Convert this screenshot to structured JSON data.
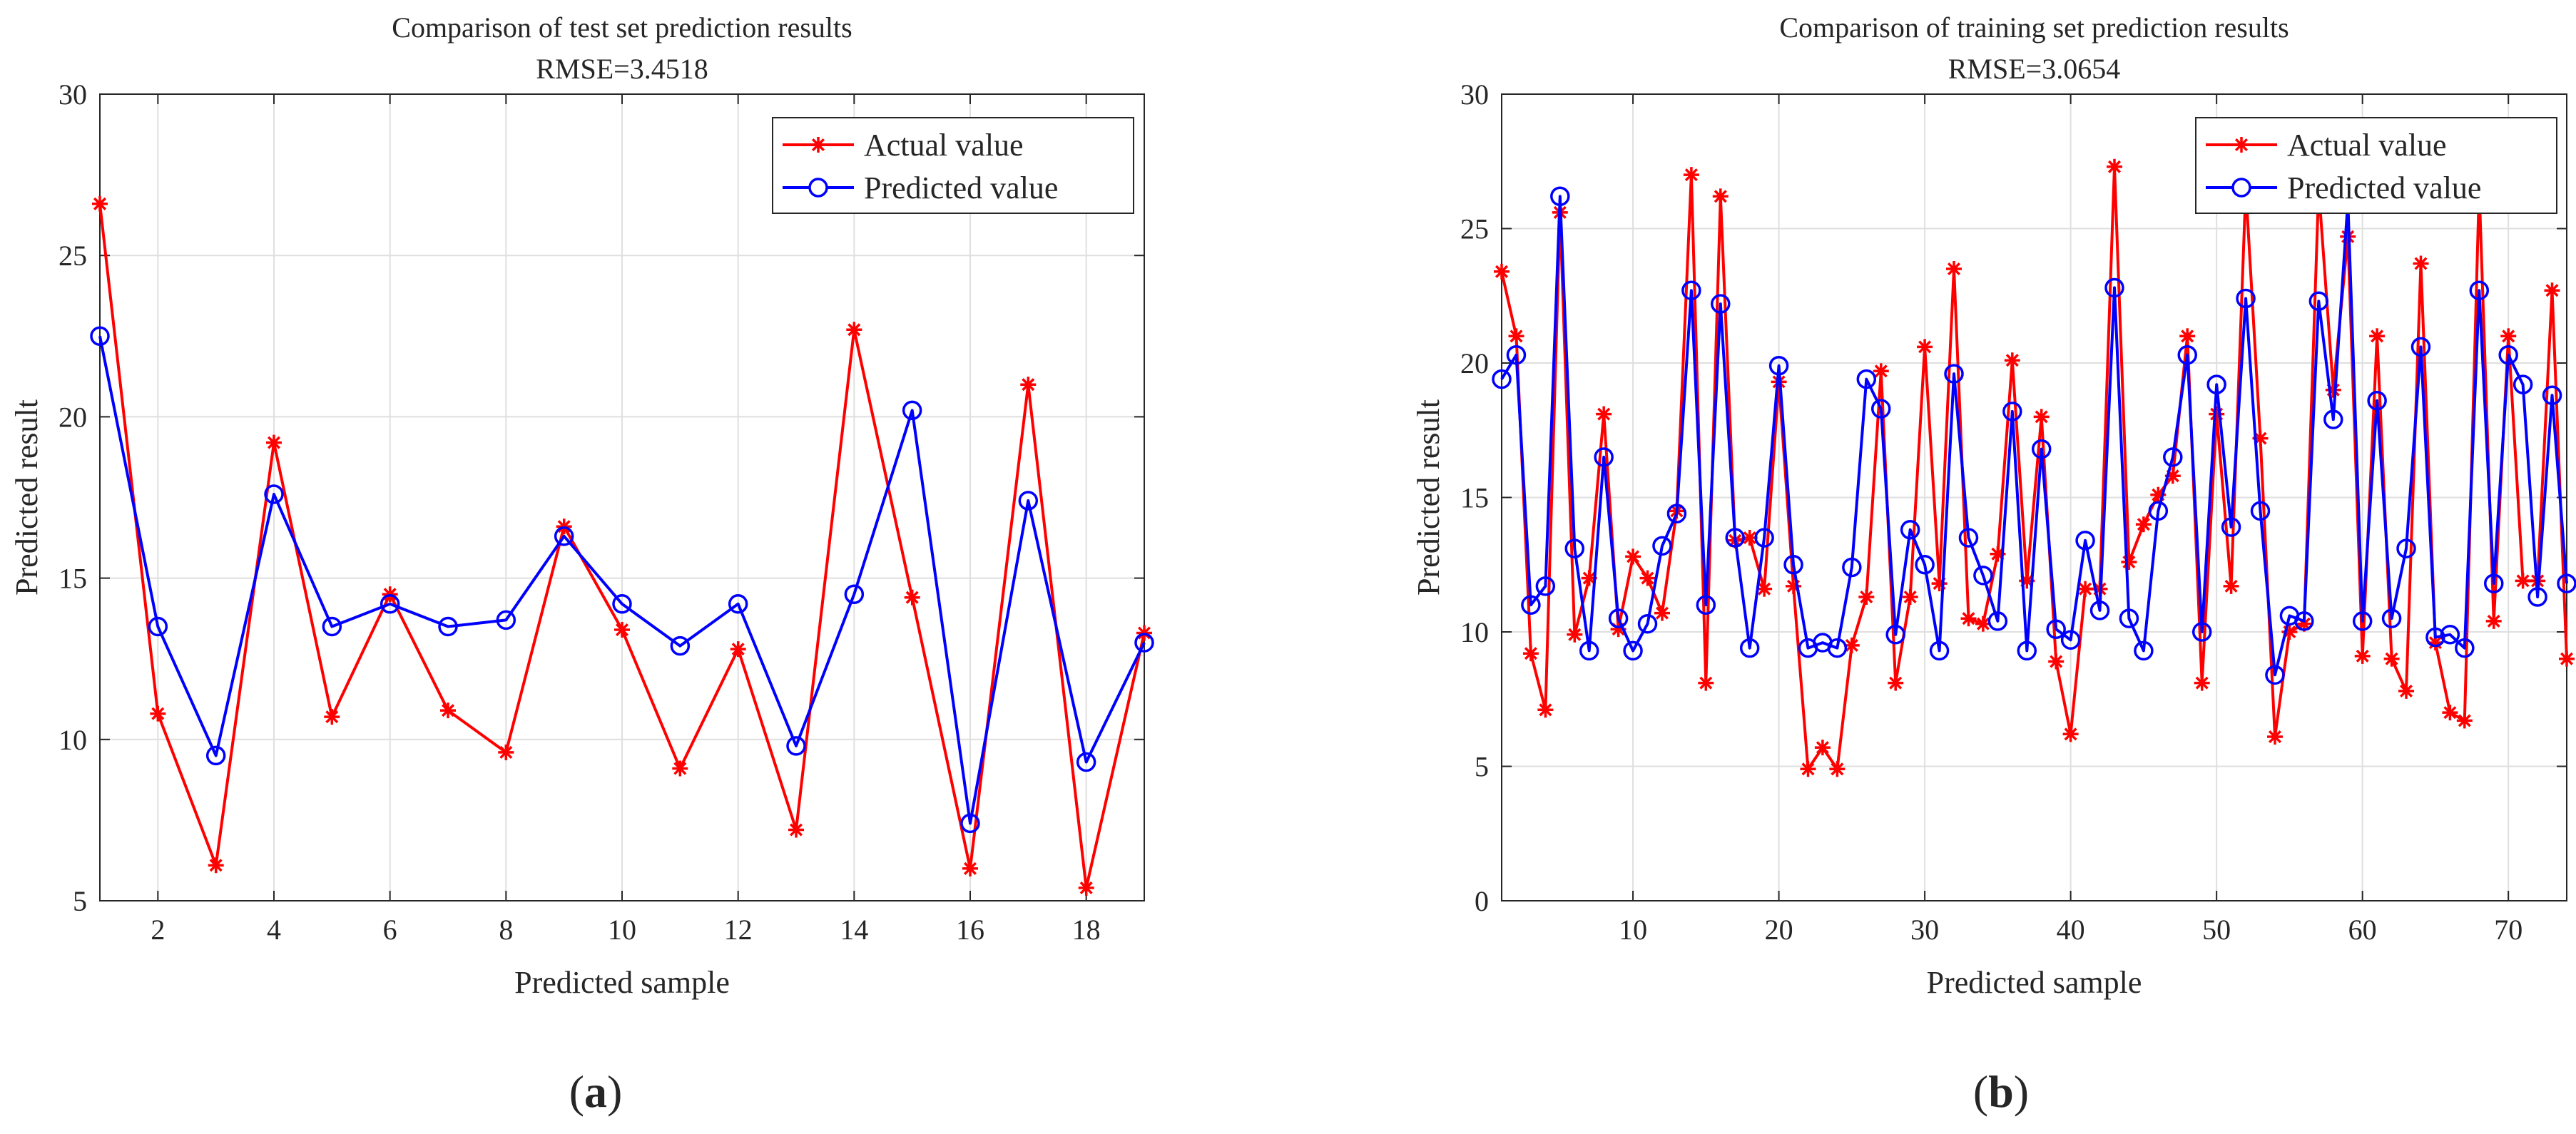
{
  "chart_data": [
    {
      "type": "line",
      "panel_label": "(a)",
      "panel_letter": "a",
      "title": "Comparison of test set prediction results",
      "subtitle": "RMSE=3.4518",
      "xlabel": "Predicted sample",
      "ylabel": "Predicted result",
      "xlim": [
        1,
        19
      ],
      "ylim": [
        5,
        30
      ],
      "xticks": [
        2,
        4,
        6,
        8,
        10,
        12,
        14,
        16,
        18
      ],
      "yticks": [
        5,
        10,
        15,
        20,
        25,
        30
      ],
      "grid": true,
      "legend_position": "top-right",
      "x": [
        1,
        2,
        3,
        4,
        5,
        6,
        7,
        8,
        9,
        10,
        11,
        12,
        13,
        14,
        15,
        16,
        17,
        18,
        19
      ],
      "series": [
        {
          "name": "Actual value",
          "color": "#ff0000",
          "marker": "asterisk",
          "values": [
            26.6,
            10.8,
            6.1,
            19.2,
            10.7,
            14.5,
            10.9,
            9.6,
            16.6,
            13.4,
            9.1,
            12.8,
            7.2,
            22.7,
            14.4,
            6.0,
            21.0,
            5.4,
            13.3
          ]
        },
        {
          "name": "Predicted value",
          "color": "#0000ff",
          "marker": "circle",
          "values": [
            22.5,
            13.5,
            9.5,
            17.6,
            13.5,
            14.2,
            13.5,
            13.7,
            16.3,
            14.2,
            12.9,
            14.2,
            9.8,
            14.5,
            20.2,
            7.4,
            17.4,
            9.3,
            13.0
          ]
        }
      ]
    },
    {
      "type": "line",
      "panel_label": "(b)",
      "panel_letter": "b",
      "title": "Comparison of training set prediction results",
      "subtitle": "RMSE=3.0654",
      "xlabel": "Predicted sample",
      "ylabel": "Predicted result",
      "xlim": [
        1,
        74
      ],
      "ylim": [
        0,
        30
      ],
      "xticks": [
        10,
        20,
        30,
        40,
        50,
        60,
        70
      ],
      "yticks": [
        0,
        5,
        10,
        15,
        20,
        25,
        30
      ],
      "grid": true,
      "legend_position": "top-right",
      "x": [
        1,
        2,
        3,
        4,
        5,
        6,
        7,
        8,
        9,
        10,
        11,
        12,
        13,
        14,
        15,
        16,
        17,
        18,
        19,
        20,
        21,
        22,
        23,
        24,
        25,
        26,
        27,
        28,
        29,
        30,
        31,
        32,
        33,
        34,
        35,
        36,
        37,
        38,
        39,
        40,
        41,
        42,
        43,
        44,
        45,
        46,
        47,
        48,
        49,
        50,
        51,
        52,
        53,
        54,
        55,
        56,
        57,
        58,
        59,
        60,
        61,
        62,
        63,
        64,
        65,
        66,
        67,
        68,
        69,
        70,
        71,
        72,
        73,
        74
      ],
      "series": [
        {
          "name": "Actual value",
          "color": "#ff0000",
          "marker": "asterisk",
          "values": [
            23.4,
            21.0,
            9.2,
            7.1,
            25.6,
            9.9,
            12.0,
            18.1,
            10.1,
            12.8,
            12.0,
            10.7,
            14.5,
            27.0,
            8.1,
            26.2,
            13.4,
            13.5,
            11.6,
            19.3,
            11.7,
            4.9,
            5.7,
            4.9,
            9.5,
            11.3,
            19.7,
            8.1,
            11.3,
            20.6,
            11.8,
            23.5,
            10.5,
            10.3,
            12.9,
            20.1,
            11.9,
            18.0,
            8.9,
            6.2,
            11.6,
            11.6,
            27.3,
            12.6,
            14.0,
            15.1,
            15.8,
            21.0,
            8.1,
            18.1,
            11.7,
            26.5,
            17.2,
            6.1,
            10.0,
            10.3,
            26.5,
            19.0,
            24.7,
            9.1,
            21.0,
            9.0,
            7.8,
            23.7,
            9.6,
            7.0,
            6.7,
            26.5,
            10.4,
            21.0,
            11.9,
            11.9,
            22.7,
            9.0
          ]
        },
        {
          "name": "Predicted value",
          "color": "#0000ff",
          "marker": "circle",
          "values": [
            19.4,
            20.3,
            11.0,
            11.7,
            26.2,
            13.1,
            9.3,
            16.5,
            10.5,
            9.3,
            10.3,
            13.2,
            14.4,
            22.7,
            11.0,
            22.2,
            13.5,
            9.4,
            13.5,
            19.9,
            12.5,
            9.4,
            9.6,
            9.4,
            12.4,
            19.4,
            18.3,
            9.9,
            13.8,
            12.5,
            9.3,
            19.6,
            13.5,
            12.1,
            10.4,
            18.2,
            9.3,
            16.8,
            10.1,
            9.7,
            13.4,
            10.8,
            22.8,
            10.5,
            9.3,
            14.5,
            16.5,
            20.3,
            10.0,
            19.2,
            13.9,
            22.4,
            14.5,
            8.4,
            10.6,
            10.4,
            22.3,
            17.9,
            26.0,
            10.4,
            18.6,
            10.5,
            13.1,
            20.6,
            9.8,
            9.9,
            9.4,
            22.7,
            11.8,
            20.3,
            19.2,
            11.3,
            18.8,
            11.8
          ]
        }
      ]
    }
  ]
}
